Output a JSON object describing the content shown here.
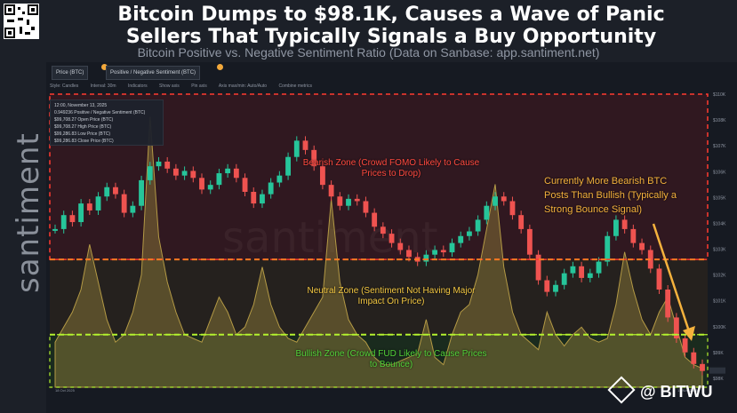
{
  "title": "Bitcoin Dumps to $98.1K, Causes a Wave of Panic Sellers That Typically Signals a Buy Opportunity",
  "subtitle": "Bitcoin Positive vs. Negative Sentiment Ratio (Data on Sanbase: app.santiment.net)",
  "brand": "santiment",
  "watermark": "santiment",
  "footer_brand": "@ BITWU",
  "tabs": [
    "Price (BTC)",
    "Positive / Negative Sentiment (BTC)"
  ],
  "toolbar": [
    "Style: Candles",
    "Interval: 30m",
    "Indicators",
    "Show axis",
    "Pin axis",
    "Axis max/min: Auto/Auto",
    "Combine metrics"
  ],
  "legend": {
    "date": "12:00, November 13, 2025",
    "rows": [
      "0.949236 Positive / Negative Sentiment (BTC)",
      "$99,708.27 Open Price (BTC)",
      "$99,708.27 High Price (BTC)",
      "$99,286.83 Low Price (BTC)",
      "$99,286.83 Close Price (BTC)"
    ]
  },
  "zones": {
    "bearish": "Bearish Zone (Crowd FOMO Likely to Cause Prices to Drop)",
    "neutral": "Neutral Zone (Sentiment Not Having Major Impact On Price)",
    "bullish": "Bullish Zone (Crowd FUD Likely to Cause Prices to Bounce)"
  },
  "annotation": "Currently More Bearish BTC Posts Than Bullish (Typically a Strong Bounce Signal)",
  "colors": {
    "bearish": "#ff3b30",
    "neutral": "#ff7a22",
    "bullish": "#b4f22e",
    "up_candle": "#26c59a",
    "down_candle": "#ef5350",
    "sentiment_fill": "#8a7a3a",
    "annotation": "#f5b23d"
  },
  "chart_data": {
    "type": "line",
    "price_series": [
      104.2,
      104.8,
      104.5,
      105.3,
      105.0,
      105.6,
      106.0,
      105.7,
      104.9,
      105.2,
      106.3,
      106.9,
      107.1,
      106.8,
      106.5,
      106.7,
      106.4,
      105.9,
      106.1,
      106.6,
      106.8,
      106.4,
      105.8,
      105.3,
      105.7,
      106.2,
      106.5,
      107.3,
      108.0,
      107.6,
      106.9,
      106.1,
      105.6,
      105.2,
      105.5,
      105.4,
      104.9,
      104.3,
      104.0,
      103.6,
      103.3,
      103.0,
      102.8,
      103.1,
      103.3,
      103.2,
      103.6,
      103.9,
      104.1,
      104.6,
      105.2,
      105.6,
      105.4,
      104.8,
      104.2,
      103.1,
      102.0,
      101.5,
      101.8,
      102.3,
      102.6,
      102.1,
      102.3,
      102.8,
      103.9,
      104.6,
      104.2,
      103.6,
      103.3,
      102.5,
      101.6,
      100.4,
      99.5,
      98.9,
      98.4,
      98.1
    ],
    "price_unit": "$K",
    "sentiment_series": [
      0.9,
      1.1,
      1.3,
      1.6,
      2.2,
      1.7,
      1.2,
      0.9,
      1.0,
      1.3,
      1.8,
      3.9,
      2.3,
      1.7,
      1.3,
      1.0,
      0.95,
      0.9,
      1.2,
      1.5,
      1.3,
      1.0,
      1.1,
      1.4,
      1.9,
      1.4,
      1.1,
      0.95,
      0.9,
      1.1,
      1.3,
      1.5,
      2.8,
      1.7,
      1.2,
      1.0,
      0.9,
      0.7,
      0.6,
      0.6,
      0.65,
      0.7,
      0.75,
      1.2,
      0.7,
      0.6,
      1.0,
      1.3,
      1.4,
      1.8,
      2.4,
      3.0,
      1.9,
      1.3,
      1.0,
      0.9,
      0.8,
      1.3,
      1.0,
      0.85,
      1.0,
      1.1,
      0.95,
      0.9,
      0.95,
      1.4,
      2.1,
      1.6,
      1.2,
      1.0,
      1.3,
      1.5,
      1.1,
      0.7,
      0.6,
      0.55
    ],
    "thresholds": {
      "bearish": 2.0,
      "bullish": 1.0
    },
    "x_ticks": [
      "18 Oct 2025",
      "",
      "",
      "",
      "",
      "",
      "",
      "",
      "",
      "",
      "",
      "",
      "13 Nov 2025"
    ],
    "y_right_ticks": [
      "$110K",
      "$108K",
      "$107K",
      "$106K",
      "$105K",
      "$104K",
      "$103K",
      "$102K",
      "$101K",
      "$100K",
      "$99K",
      "$98K"
    ]
  }
}
